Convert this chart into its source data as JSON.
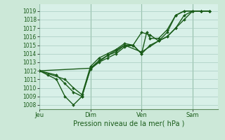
{
  "bg_color": "#cce8d8",
  "plot_bg_color": "#d8f0e8",
  "grid_color": "#a8ccc0",
  "line_color": "#1a5c1a",
  "title": "Pression niveau de la mer( hPa )",
  "ylim": [
    1007.5,
    1019.8
  ],
  "xlim": [
    0,
    10.5
  ],
  "yticks": [
    1008,
    1009,
    1010,
    1011,
    1012,
    1013,
    1014,
    1015,
    1016,
    1017,
    1018,
    1019
  ],
  "xtick_labels": [
    "Jeu",
    "Dim",
    "Ven",
    "Sam"
  ],
  "xtick_positions": [
    0.0,
    3.0,
    6.0,
    9.0
  ],
  "vline_positions": [
    0.0,
    3.0,
    6.0,
    9.0
  ],
  "series": [
    {
      "x": [
        0.0,
        0.5,
        1.0,
        1.5,
        2.0,
        2.5,
        3.0,
        3.5,
        4.0,
        4.5,
        5.0,
        5.5,
        6.0,
        6.5,
        7.0,
        7.5,
        8.0,
        8.5,
        9.0,
        9.5,
        10.0
      ],
      "y": [
        1012.0,
        1011.5,
        1011.0,
        1009.0,
        1008.0,
        1009.0,
        1012.2,
        1013.0,
        1013.5,
        1014.0,
        1014.8,
        1015.0,
        1016.5,
        1016.2,
        1015.5,
        1016.0,
        1017.0,
        1018.5,
        1019.0,
        1019.0,
        1019.0
      ]
    },
    {
      "x": [
        0.0,
        1.0,
        1.5,
        2.0,
        2.5,
        3.0,
        3.5,
        4.0,
        4.5,
        5.0,
        5.5,
        6.0,
        6.5,
        7.0,
        7.5,
        8.0,
        8.5,
        9.0,
        9.5,
        10.0
      ],
      "y": [
        1012.0,
        1011.5,
        1010.5,
        1009.5,
        1009.0,
        1012.3,
        1013.2,
        1013.8,
        1014.2,
        1015.0,
        1015.0,
        1014.0,
        1015.0,
        1015.5,
        1016.5,
        1018.5,
        1019.0,
        1019.0,
        1019.0,
        1019.0
      ]
    },
    {
      "x": [
        0.0,
        3.0,
        4.0,
        5.0,
        6.0,
        7.0,
        7.5,
        8.0,
        8.5,
        9.0,
        9.5,
        10.0
      ],
      "y": [
        1012.0,
        1012.3,
        1013.8,
        1015.0,
        1014.2,
        1015.5,
        1016.0,
        1017.0,
        1018.0,
        1019.0,
        1019.0,
        1019.0
      ]
    },
    {
      "x": [
        0.0,
        1.5,
        2.0,
        2.5,
        3.0,
        3.5,
        4.0,
        4.5,
        5.0,
        5.5,
        6.0,
        6.3,
        6.5,
        7.0,
        7.5,
        8.0,
        8.5,
        9.0,
        9.5,
        10.0
      ],
      "y": [
        1012.0,
        1011.0,
        1010.0,
        1009.2,
        1012.5,
        1013.5,
        1014.0,
        1014.5,
        1015.2,
        1015.0,
        1014.0,
        1016.5,
        1015.8,
        1015.8,
        1016.8,
        1018.5,
        1019.0,
        1019.0,
        1019.0,
        1019.0
      ]
    }
  ],
  "marker": "D",
  "markersize": 2.0,
  "linewidth": 1.0,
  "title_fontsize": 7.0,
  "tick_fontsize": 5.5,
  "xtick_fontsize": 6.0
}
